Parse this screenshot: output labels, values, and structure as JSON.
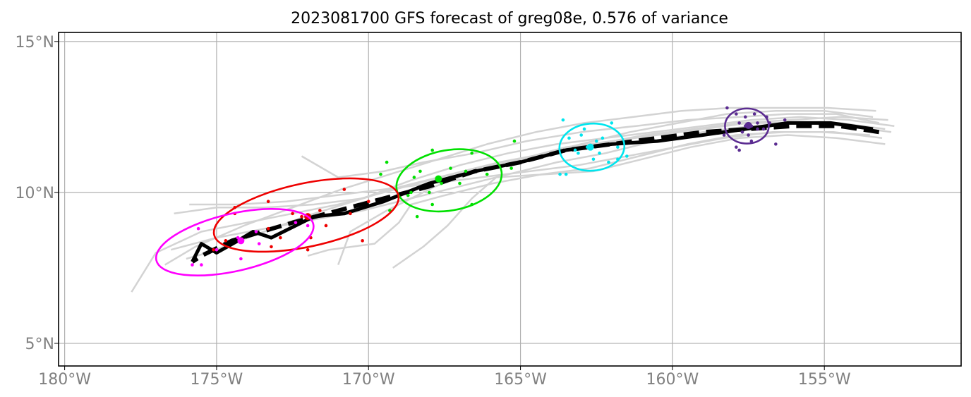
{
  "chart_data": {
    "type": "scatter",
    "title": "2023081700 GFS forecast of greg08e, 0.576 of variance",
    "xlabel": "",
    "ylabel": "",
    "xlim": [
      -180.2,
      -150.5
    ],
    "ylim": [
      4.25,
      15.3
    ],
    "grid": true,
    "x_ticks": [
      {
        "value": -180,
        "label": "180°W"
      },
      {
        "value": -175,
        "label": "175°W"
      },
      {
        "value": -170,
        "label": "170°W"
      },
      {
        "value": -165,
        "label": "165°W"
      },
      {
        "value": -160,
        "label": "160°W"
      },
      {
        "value": -155,
        "label": "155°W"
      }
    ],
    "y_ticks": [
      {
        "value": 15,
        "label": "15°N"
      },
      {
        "value": 10,
        "label": "10°N"
      },
      {
        "value": 5,
        "label": "5°N"
      }
    ],
    "colors": {
      "ensemble": "#d3d3d3",
      "track": "#000000",
      "grid": "#b0b0b0",
      "purple": "#5b2c91",
      "cyan": "#00e5ee",
      "green": "#00e000",
      "red": "#ee0000",
      "magenta": "#ff00ff"
    },
    "ensemble_tracks": [
      [
        [
          -153.0,
          12.1
        ],
        [
          -154.5,
          12.3
        ],
        [
          -156.0,
          12.3
        ],
        [
          -157.5,
          12.3
        ],
        [
          -159.0,
          12.1
        ],
        [
          -160.5,
          11.9
        ],
        [
          -162.0,
          11.7
        ],
        [
          -163.5,
          11.5
        ],
        [
          -165.0,
          11.1
        ],
        [
          -166.5,
          10.8
        ],
        [
          -168.0,
          10.4
        ],
        [
          -169.5,
          10.0
        ],
        [
          -171.0,
          9.6
        ],
        [
          -172.5,
          9.3
        ],
        [
          -174.0,
          9.0
        ],
        [
          -175.5,
          8.7
        ],
        [
          -177.0,
          8.0
        ],
        [
          -177.8,
          6.7
        ]
      ],
      [
        [
          -153.2,
          12.3
        ],
        [
          -154.6,
          12.6
        ],
        [
          -156.2,
          12.6
        ],
        [
          -157.8,
          12.5
        ],
        [
          -159.5,
          12.4
        ],
        [
          -161.2,
          12.2
        ],
        [
          -163.0,
          12.0
        ],
        [
          -164.8,
          11.7
        ],
        [
          -166.5,
          11.3
        ],
        [
          -168.2,
          11.0
        ],
        [
          -169.5,
          10.7
        ],
        [
          -171.0,
          10.5
        ],
        [
          -172.2,
          11.2
        ]
      ],
      [
        [
          -152.8,
          12.0
        ],
        [
          -154.3,
          12.2
        ],
        [
          -155.8,
          12.3
        ],
        [
          -157.4,
          12.2
        ],
        [
          -159.0,
          12.0
        ],
        [
          -160.6,
          11.7
        ],
        [
          -162.2,
          11.3
        ],
        [
          -163.8,
          11.0
        ],
        [
          -165.4,
          10.6
        ],
        [
          -167.0,
          10.2
        ],
        [
          -168.6,
          9.8
        ],
        [
          -170.2,
          9.4
        ],
        [
          -171.8,
          9.1
        ],
        [
          -173.4,
          8.8
        ],
        [
          -175.0,
          8.5
        ],
        [
          -176.5,
          8.1
        ]
      ],
      [
        [
          -153.1,
          11.8
        ],
        [
          -154.7,
          12.0
        ],
        [
          -156.3,
          12.0
        ],
        [
          -157.9,
          11.9
        ],
        [
          -159.5,
          11.6
        ],
        [
          -161.1,
          11.2
        ],
        [
          -162.7,
          10.8
        ],
        [
          -164.3,
          10.6
        ],
        [
          -165.9,
          10.3
        ],
        [
          -167.5,
          9.9
        ],
        [
          -168.6,
          9.6
        ],
        [
          -169.0,
          9.0
        ],
        [
          -169.8,
          8.3
        ],
        [
          -171.3,
          8.1
        ],
        [
          -172.0,
          7.9
        ]
      ],
      [
        [
          -153.4,
          12.5
        ],
        [
          -155.0,
          12.7
        ],
        [
          -156.6,
          12.7
        ],
        [
          -158.2,
          12.6
        ],
        [
          -159.8,
          12.3
        ],
        [
          -161.4,
          12.0
        ],
        [
          -163.0,
          11.6
        ],
        [
          -164.6,
          11.2
        ],
        [
          -166.2,
          10.8
        ],
        [
          -167.8,
          10.2
        ],
        [
          -169.4,
          9.4
        ],
        [
          -170.6,
          8.7
        ],
        [
          -171.0,
          7.6
        ]
      ],
      [
        [
          -153.0,
          11.6
        ],
        [
          -154.6,
          11.8
        ],
        [
          -156.2,
          11.9
        ],
        [
          -157.8,
          11.8
        ],
        [
          -159.4,
          11.5
        ],
        [
          -161.0,
          11.1
        ],
        [
          -162.6,
          10.7
        ],
        [
          -164.2,
          10.6
        ],
        [
          -165.8,
          10.5
        ],
        [
          -166.6,
          9.8
        ],
        [
          -167.4,
          8.9
        ],
        [
          -168.2,
          8.2
        ],
        [
          -169.2,
          7.5
        ]
      ],
      [
        [
          -152.7,
          12.2
        ],
        [
          -154.2,
          12.4
        ],
        [
          -155.8,
          12.5
        ],
        [
          -157.4,
          12.4
        ],
        [
          -159.0,
          12.2
        ],
        [
          -160.6,
          12.0
        ],
        [
          -162.2,
          11.8
        ],
        [
          -163.8,
          11.6
        ],
        [
          -165.4,
          11.3
        ],
        [
          -167.0,
          10.9
        ],
        [
          -168.6,
          10.4
        ],
        [
          -170.2,
          9.8
        ],
        [
          -171.8,
          9.6
        ],
        [
          -173.4,
          9.5
        ],
        [
          -175.0,
          9.5
        ],
        [
          -176.4,
          9.3
        ]
      ],
      [
        [
          -153.3,
          12.7
        ],
        [
          -154.9,
          12.8
        ],
        [
          -156.5,
          12.8
        ],
        [
          -158.1,
          12.8
        ],
        [
          -159.7,
          12.7
        ],
        [
          -161.3,
          12.5
        ],
        [
          -162.9,
          12.3
        ],
        [
          -164.5,
          12.0
        ],
        [
          -166.1,
          11.6
        ],
        [
          -167.7,
          11.1
        ],
        [
          -169.3,
          10.6
        ],
        [
          -170.9,
          10.1
        ],
        [
          -172.5,
          9.5
        ],
        [
          -174.1,
          8.9
        ],
        [
          -175.7,
          8.2
        ],
        [
          -176.7,
          7.6
        ]
      ],
      [
        [
          -153.5,
          11.9
        ],
        [
          -155.1,
          12.0
        ],
        [
          -156.7,
          12.0
        ],
        [
          -158.3,
          11.8
        ],
        [
          -159.9,
          11.5
        ],
        [
          -161.5,
          11.2
        ],
        [
          -163.1,
          10.9
        ],
        [
          -164.7,
          10.7
        ],
        [
          -166.3,
          10.5
        ],
        [
          -167.9,
          10.3
        ],
        [
          -169.5,
          10.1
        ],
        [
          -171.1,
          9.9
        ],
        [
          -172.7,
          9.7
        ],
        [
          -174.3,
          9.6
        ],
        [
          -175.9,
          9.6
        ]
      ],
      [
        [
          -152.9,
          12.4
        ],
        [
          -154.5,
          12.5
        ],
        [
          -156.1,
          12.4
        ],
        [
          -157.7,
          12.3
        ],
        [
          -159.3,
          12.1
        ],
        [
          -160.9,
          11.9
        ],
        [
          -162.5,
          11.6
        ],
        [
          -164.1,
          11.3
        ],
        [
          -165.7,
          11.0
        ],
        [
          -167.3,
          10.6
        ],
        [
          -168.9,
          10.2
        ],
        [
          -170.5,
          9.7
        ],
        [
          -172.1,
          9.2
        ],
        [
          -173.7,
          8.6
        ],
        [
          -175.3,
          8.0
        ],
        [
          -176.0,
          7.8
        ]
      ]
    ],
    "mean_track": [
      [
        -153.2,
        12.0
      ],
      [
        -154.5,
        12.2
      ],
      [
        -156.0,
        12.2
      ],
      [
        -157.5,
        12.1
      ],
      [
        -159.0,
        12.0
      ],
      [
        -160.5,
        11.8
      ],
      [
        -162.0,
        11.6
      ],
      [
        -163.5,
        11.4
      ],
      [
        -165.0,
        11.0
      ],
      [
        -166.5,
        10.7
      ],
      [
        -168.0,
        10.2
      ],
      [
        -169.5,
        9.8
      ],
      [
        -171.0,
        9.4
      ],
      [
        -172.5,
        9.0
      ],
      [
        -173.5,
        8.7
      ],
      [
        -174.5,
        8.4
      ],
      [
        -175.5,
        7.9
      ],
      [
        -175.8,
        7.7
      ]
    ],
    "observed_track": [
      [
        -153.4,
        12.1
      ],
      [
        -154.8,
        12.3
      ],
      [
        -156.2,
        12.3
      ],
      [
        -157.6,
        12.1
      ],
      [
        -159.0,
        11.9
      ],
      [
        -160.5,
        11.7
      ],
      [
        -162.0,
        11.6
      ],
      [
        -163.5,
        11.4
      ],
      [
        -165.0,
        11.0
      ],
      [
        -166.5,
        10.7
      ],
      [
        -168.0,
        10.3
      ],
      [
        -169.5,
        9.7
      ],
      [
        -170.8,
        9.3
      ],
      [
        -171.8,
        9.2
      ],
      [
        -172.6,
        8.8
      ],
      [
        -173.2,
        8.5
      ],
      [
        -173.8,
        8.7
      ],
      [
        -174.3,
        8.4
      ],
      [
        -175.0,
        8.0
      ],
      [
        -175.5,
        8.3
      ],
      [
        -175.8,
        7.7
      ]
    ],
    "clusters": [
      {
        "color": "#5b2c91",
        "center": [
          -157.5,
          12.22
        ],
        "ellipse": {
          "cx": -157.55,
          "cy": 12.2,
          "rx": 0.72,
          "ry": 0.58,
          "angle": 0
        },
        "points": [
          [
            -158.2,
            12.8
          ],
          [
            -157.9,
            12.6
          ],
          [
            -157.3,
            12.6
          ],
          [
            -156.9,
            12.5
          ],
          [
            -157.8,
            12.3
          ],
          [
            -157.6,
            12.2
          ],
          [
            -157.4,
            12.2
          ],
          [
            -157.2,
            12.1
          ],
          [
            -157.0,
            12.1
          ],
          [
            -157.7,
            12.0
          ],
          [
            -157.5,
            11.9
          ],
          [
            -158.3,
            11.9
          ],
          [
            -157.9,
            11.5
          ],
          [
            -157.8,
            11.4
          ],
          [
            -157.4,
            11.7
          ],
          [
            -156.6,
            11.6
          ],
          [
            -156.3,
            12.4
          ],
          [
            -156.8,
            12.3
          ],
          [
            -157.6,
            12.5
          ],
          [
            -157.2,
            12.3
          ]
        ]
      },
      {
        "color": "#00e5ee",
        "center": [
          -162.7,
          11.5
        ],
        "ellipse": {
          "cx": -162.65,
          "cy": 11.5,
          "rx": 1.07,
          "ry": 0.78,
          "angle": -4
        },
        "points": [
          [
            -163.6,
            12.4
          ],
          [
            -163.4,
            11.8
          ],
          [
            -163.1,
            11.3
          ],
          [
            -162.8,
            11.5
          ],
          [
            -162.5,
            11.7
          ],
          [
            -162.3,
            11.8
          ],
          [
            -162.0,
            12.3
          ],
          [
            -161.8,
            11.5
          ],
          [
            -161.5,
            11.2
          ],
          [
            -162.1,
            11.0
          ],
          [
            -162.6,
            11.1
          ],
          [
            -163.0,
            11.9
          ],
          [
            -163.7,
            10.6
          ],
          [
            -163.5,
            10.6
          ],
          [
            -161.8,
            11.1
          ],
          [
            -163.2,
            11.4
          ],
          [
            -162.4,
            11.3
          ],
          [
            -162.9,
            12.1
          ]
        ]
      },
      {
        "color": "#00e000",
        "center": [
          -167.7,
          10.45
        ],
        "ellipse": {
          "cx": -167.35,
          "cy": 10.4,
          "rx": 1.75,
          "ry": 1.0,
          "angle": -10
        },
        "points": [
          [
            -167.9,
            11.4
          ],
          [
            -166.6,
            11.3
          ],
          [
            -169.4,
            11.0
          ],
          [
            -168.3,
            10.7
          ],
          [
            -167.3,
            10.8
          ],
          [
            -166.8,
            10.7
          ],
          [
            -166.1,
            10.6
          ],
          [
            -168.6,
            10.0
          ],
          [
            -167.6,
            10.3
          ],
          [
            -167.0,
            10.3
          ],
          [
            -168.0,
            10.0
          ],
          [
            -168.7,
            9.9
          ],
          [
            -169.3,
            9.4
          ],
          [
            -168.4,
            9.2
          ],
          [
            -167.9,
            9.6
          ],
          [
            -166.6,
            9.6
          ],
          [
            -165.3,
            10.8
          ],
          [
            -165.2,
            11.7
          ],
          [
            -169.6,
            10.6
          ],
          [
            -168.5,
            10.5
          ]
        ]
      },
      {
        "color": "#ee0000",
        "center": [
          -172.0,
          9.2
        ],
        "ellipse": {
          "cx": -172.05,
          "cy": 9.25,
          "rx": 3.1,
          "ry": 1.05,
          "angle": -12
        },
        "points": [
          [
            -174.4,
            9.5
          ],
          [
            -174.4,
            9.3
          ],
          [
            -173.3,
            9.7
          ],
          [
            -170.8,
            10.1
          ],
          [
            -172.2,
            9.2
          ],
          [
            -172.5,
            9.3
          ],
          [
            -171.6,
            9.4
          ],
          [
            -170.6,
            9.3
          ],
          [
            -170.0,
            9.7
          ],
          [
            -173.3,
            8.8
          ],
          [
            -172.9,
            8.5
          ],
          [
            -171.9,
            8.5
          ],
          [
            -173.2,
            8.2
          ],
          [
            -172.0,
            8.1
          ],
          [
            -170.2,
            8.4
          ],
          [
            -174.7,
            8.4
          ],
          [
            -175.1,
            8.1
          ],
          [
            -171.4,
            8.9
          ]
        ]
      },
      {
        "color": "#ff00ff",
        "center": [
          -174.2,
          8.4
        ],
        "ellipse": {
          "cx": -174.4,
          "cy": 8.35,
          "rx": 2.65,
          "ry": 0.95,
          "angle": -13
        },
        "points": [
          [
            -175.6,
            8.8
          ],
          [
            -173.7,
            8.7
          ],
          [
            -172.0,
            8.9
          ],
          [
            -172.4,
            9.0
          ],
          [
            -174.3,
            8.5
          ],
          [
            -175.0,
            8.1
          ],
          [
            -174.2,
            7.8
          ],
          [
            -175.5,
            7.6
          ],
          [
            -175.8,
            7.6
          ],
          [
            -173.6,
            8.3
          ]
        ]
      }
    ]
  }
}
